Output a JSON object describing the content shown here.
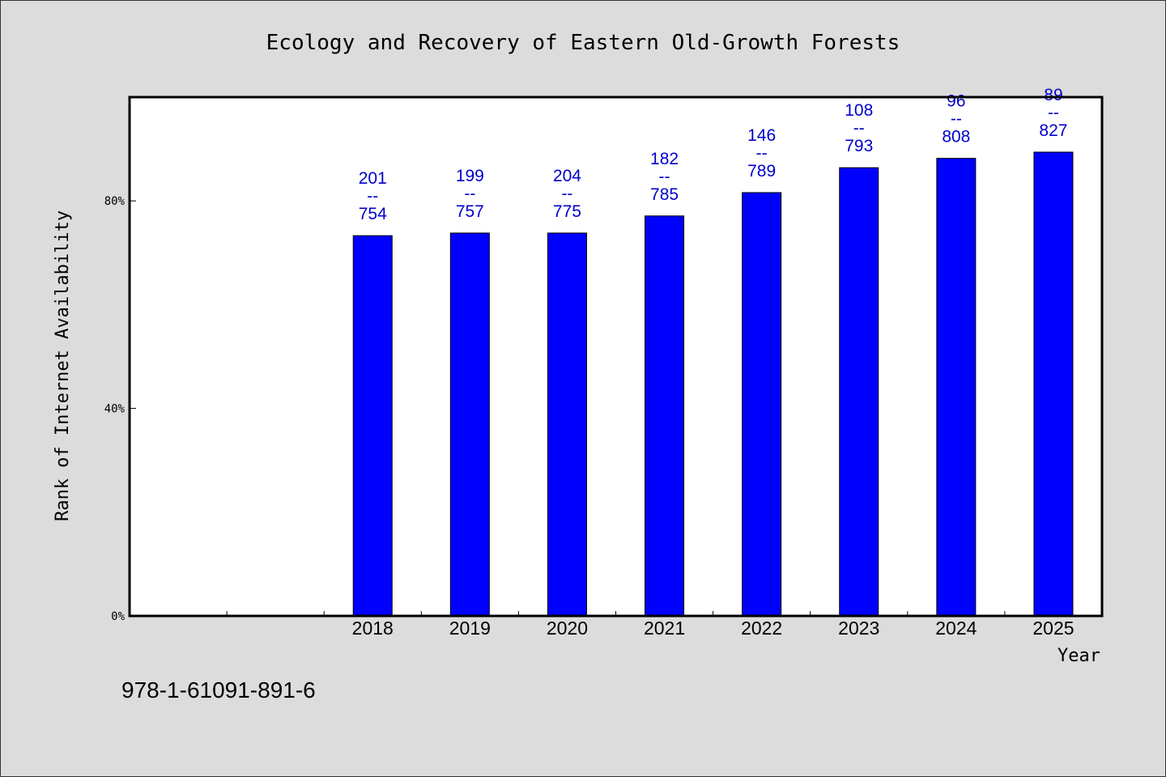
{
  "chart_data": {
    "type": "bar",
    "title": "Ecology and Recovery of Eastern Old-Growth Forests",
    "xlabel": "Year",
    "ylabel": "Rank of Internet Availability",
    "categories": [
      "",
      "",
      "2018",
      "2019",
      "2020",
      "2021",
      "2022",
      "2023",
      "2024",
      "2025"
    ],
    "values": [
      null,
      null,
      73.3,
      73.8,
      73.8,
      77.1,
      81.6,
      86.4,
      88.2,
      89.4
    ],
    "bar_labels": [
      [
        "",
        "",
        ""
      ],
      [
        "",
        "",
        ""
      ],
      [
        "201",
        "--",
        "754"
      ],
      [
        "199",
        "--",
        "757"
      ],
      [
        "204",
        "--",
        "775"
      ],
      [
        "182",
        "--",
        "785"
      ],
      [
        "146",
        "--",
        "789"
      ],
      [
        "108",
        "--",
        "793"
      ],
      [
        "96",
        "--",
        "808"
      ],
      [
        "89",
        "--",
        "827"
      ]
    ],
    "ylim": [
      0,
      100
    ],
    "yticks": [
      0,
      40,
      80
    ],
    "ytick_labels": [
      "0%",
      "40%",
      "80%"
    ],
    "bar_color": "#0000ff",
    "label_color": "#0000cc",
    "grid": false,
    "legend": false
  },
  "footer_text": "978-1-61091-891-6"
}
